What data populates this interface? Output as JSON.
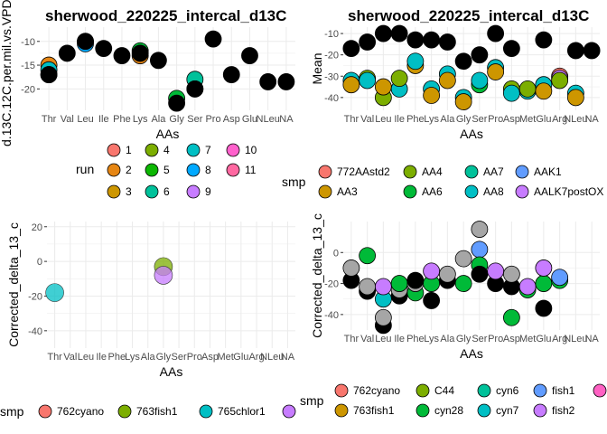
{
  "colors": {
    "panel_bg": "#ffffff",
    "grid": "#ebebeb",
    "axis_text": "#4d4d4d",
    "title_text": "#000000",
    "black_point": "#000000",
    "grey_point": "#a6a6a6"
  },
  "chart_data": [
    {
      "id": "p1",
      "type": "scatter",
      "title": "sherwood_220225_intercal_d13C",
      "xlabel": "AAs",
      "ylabel": "d.13C.12C.per.mil.vs.VPDB",
      "categories": [
        "Thr",
        "Val",
        "Leu",
        "Ile",
        "Phe",
        "Lys",
        "Ala",
        "Gly",
        "Ser",
        "Pro",
        "Asp",
        "Glu",
        "NLeu",
        "NA"
      ],
      "ylim": [
        -24.5,
        -7
      ],
      "yticks": [
        -10,
        -15,
        -20
      ],
      "grid": true,
      "points": [
        {
          "x": "Thr",
          "y": -15,
          "c": "#E68613"
        },
        {
          "x": "Thr",
          "y": -16,
          "c": "#00BFC4"
        },
        {
          "x": "Thr",
          "y": -17,
          "c": "#FF68A1"
        },
        {
          "x": "Thr",
          "y": -17,
          "c": "#000000"
        },
        {
          "x": "Val",
          "y": -12.5,
          "c": "#000000"
        },
        {
          "x": "Leu",
          "y": -10,
          "c": "#00BA38"
        },
        {
          "x": "Leu",
          "y": -10.5,
          "c": "#00A9FF"
        },
        {
          "x": "Leu",
          "y": -10,
          "c": "#000000"
        },
        {
          "x": "Ile",
          "y": -11.5,
          "c": "#000000"
        },
        {
          "x": "Phe",
          "y": -13,
          "c": "#000000"
        },
        {
          "x": "Lys",
          "y": -12,
          "c": "#00BA38"
        },
        {
          "x": "Lys",
          "y": -13,
          "c": "#E68613"
        },
        {
          "x": "Lys",
          "y": -12.5,
          "c": "#000000"
        },
        {
          "x": "Ala",
          "y": -14,
          "c": "#000000"
        },
        {
          "x": "Gly",
          "y": -22,
          "c": "#00BA38"
        },
        {
          "x": "Gly",
          "y": -23,
          "c": "#000000"
        },
        {
          "x": "Ser",
          "y": -18,
          "c": "#00C19A"
        },
        {
          "x": "Ser",
          "y": -20,
          "c": "#FF68A1"
        },
        {
          "x": "Ser",
          "y": -20,
          "c": "#000000"
        },
        {
          "x": "Pro",
          "y": -9.5,
          "c": "#000000"
        },
        {
          "x": "Asp",
          "y": -17,
          "c": "#000000"
        },
        {
          "x": "Glu",
          "y": -13,
          "c": "#000000"
        },
        {
          "x": "NLeu",
          "y": -18.5,
          "c": "#000000"
        },
        {
          "x": "NA",
          "y": -18.5,
          "c": "#000000"
        }
      ]
    },
    {
      "id": "p2",
      "type": "scatter",
      "title": "sherwood_220225_intercal_d13C",
      "xlabel": "AAs",
      "ylabel": "Mean",
      "categories": [
        "Thr",
        "Val",
        "Leu",
        "Ile",
        "Phe",
        "Lys",
        "Ala",
        "Gly",
        "Ser",
        "Pro",
        "Asp",
        "Met",
        "Glu",
        "Arg",
        "NLeu",
        "NA"
      ],
      "ylim": [
        -46,
        -7
      ],
      "yticks": [
        -10,
        -20,
        -30,
        -40
      ],
      "grid": true,
      "points": [
        {
          "x": "Thr",
          "y": -32,
          "c": "#00BFC4"
        },
        {
          "x": "Thr",
          "y": -34,
          "c": "#CD9600"
        },
        {
          "x": "Thr",
          "y": -17,
          "c": "#000000"
        },
        {
          "x": "Val",
          "y": -31,
          "c": "#7CAE00"
        },
        {
          "x": "Val",
          "y": -32,
          "c": "#00BFC4"
        },
        {
          "x": "Val",
          "y": -14,
          "c": "#000000"
        },
        {
          "x": "Leu",
          "y": -40,
          "c": "#7CAE00"
        },
        {
          "x": "Leu",
          "y": -35,
          "c": "#CD9600"
        },
        {
          "x": "Leu",
          "y": -10,
          "c": "#000000"
        },
        {
          "x": "Ile",
          "y": -36,
          "c": "#00BFC4"
        },
        {
          "x": "Ile",
          "y": -31,
          "c": "#7CAE00"
        },
        {
          "x": "Ile",
          "y": -10,
          "c": "#000000"
        },
        {
          "x": "Phe",
          "y": -25,
          "c": "#CD9600"
        },
        {
          "x": "Phe",
          "y": -23,
          "c": "#00BFC4"
        },
        {
          "x": "Phe",
          "y": -13,
          "c": "#000000"
        },
        {
          "x": "Lys",
          "y": -36,
          "c": "#00BFC4"
        },
        {
          "x": "Lys",
          "y": -39,
          "c": "#CD9600"
        },
        {
          "x": "Lys",
          "y": -13,
          "c": "#000000"
        },
        {
          "x": "Ala",
          "y": -29,
          "c": "#00BFC4"
        },
        {
          "x": "Ala",
          "y": -32,
          "c": "#CD9600"
        },
        {
          "x": "Ala",
          "y": -14,
          "c": "#000000"
        },
        {
          "x": "Gly",
          "y": -40,
          "c": "#00BFC4"
        },
        {
          "x": "Gly",
          "y": -42,
          "c": "#CD9600"
        },
        {
          "x": "Gly",
          "y": -23,
          "c": "#000000"
        },
        {
          "x": "Ser",
          "y": -34,
          "c": "#00BA38"
        },
        {
          "x": "Ser",
          "y": -32,
          "c": "#00BFC4"
        },
        {
          "x": "Ser",
          "y": -20,
          "c": "#000000"
        },
        {
          "x": "Pro",
          "y": -26,
          "c": "#00BFC4"
        },
        {
          "x": "Pro",
          "y": -28,
          "c": "#CD9600"
        },
        {
          "x": "Pro",
          "y": -10,
          "c": "#000000"
        },
        {
          "x": "Asp",
          "y": -36,
          "c": "#7CAE00"
        },
        {
          "x": "Asp",
          "y": -38,
          "c": "#00BFC4"
        },
        {
          "x": "Asp",
          "y": -17,
          "c": "#000000"
        },
        {
          "x": "Met",
          "y": -37,
          "c": "#00BFC4"
        },
        {
          "x": "Met",
          "y": -36,
          "c": "#7CAE00"
        },
        {
          "x": "Glu",
          "y": -34,
          "c": "#00BFC4"
        },
        {
          "x": "Glu",
          "y": -37,
          "c": "#CD9600"
        },
        {
          "x": "Glu",
          "y": -13,
          "c": "#000000"
        },
        {
          "x": "Arg",
          "y": -30,
          "c": "#F8766D"
        },
        {
          "x": "Arg",
          "y": -31,
          "c": "#C77CFF"
        },
        {
          "x": "Arg",
          "y": -32,
          "c": "#7CAE00"
        },
        {
          "x": "NLeu",
          "y": -38,
          "c": "#00BFC4"
        },
        {
          "x": "NLeu",
          "y": -40,
          "c": "#CD9600"
        },
        {
          "x": "NLeu",
          "y": -18,
          "c": "#000000"
        },
        {
          "x": "NA",
          "y": -18,
          "c": "#000000"
        }
      ]
    },
    {
      "id": "p3",
      "type": "scatter",
      "title": "",
      "xlabel": "AAs",
      "ylabel": "Corrected_delta_13_c",
      "categories": [
        "Thr",
        "Val",
        "Leu",
        "Ile",
        "Phe",
        "Lys",
        "Ala",
        "Gly",
        "Ser",
        "Pro",
        "Asp",
        "Met",
        "Glu",
        "Arg",
        "NLeu",
        "NA"
      ],
      "ylim": [
        -50,
        23
      ],
      "yticks": [
        20,
        0,
        -20,
        -40
      ],
      "grid": true,
      "points": [
        {
          "x": "Thr",
          "y": -18,
          "c": "#00BFC4"
        },
        {
          "x": "Gly",
          "y": -3,
          "c": "#7CAE00"
        },
        {
          "x": "Gly",
          "y": -8,
          "c": "#C77CFF"
        }
      ]
    },
    {
      "id": "p4",
      "type": "scatter",
      "title": "",
      "xlabel": "AAs",
      "ylabel": "Corrected_delta_13_c",
      "categories": [
        "Thr",
        "Val",
        "Leu",
        "Ile",
        "Phe",
        "Lys",
        "Ala",
        "Gly",
        "Ser",
        "Pro",
        "Asp",
        "Met",
        "Glu",
        "Arg",
        "NLeu",
        "NA"
      ],
      "ylim": [
        -50,
        20
      ],
      "yticks": [
        0,
        -20,
        -40
      ],
      "grid": true,
      "points": [
        {
          "x": "Thr",
          "y": -18,
          "c": "#000000"
        },
        {
          "x": "Thr",
          "y": -10,
          "c": "#a6a6a6"
        },
        {
          "x": "Val",
          "y": -2,
          "c": "#00BA38"
        },
        {
          "x": "Val",
          "y": -25,
          "c": "#000000"
        },
        {
          "x": "Val",
          "y": -22,
          "c": "#a6a6a6"
        },
        {
          "x": "Leu",
          "y": -47,
          "c": "#000000"
        },
        {
          "x": "Leu",
          "y": -42,
          "c": "#a6a6a6"
        },
        {
          "x": "Leu",
          "y": -30,
          "c": "#00BFC4"
        },
        {
          "x": "Leu",
          "y": -22,
          "c": "#C77CFF"
        },
        {
          "x": "Ile",
          "y": -28,
          "c": "#000000"
        },
        {
          "x": "Ile",
          "y": -24,
          "c": "#a6a6a6"
        },
        {
          "x": "Ile",
          "y": -20,
          "c": "#00BA38"
        },
        {
          "x": "Phe",
          "y": -26,
          "c": "#00BA38"
        },
        {
          "x": "Phe",
          "y": -20,
          "c": "#a6a6a6"
        },
        {
          "x": "Phe",
          "y": -18,
          "c": "#000000"
        },
        {
          "x": "Lys",
          "y": -31,
          "c": "#000000"
        },
        {
          "x": "Lys",
          "y": -20,
          "c": "#00BA38"
        },
        {
          "x": "Lys",
          "y": -12,
          "c": "#C77CFF"
        },
        {
          "x": "Ala",
          "y": -18,
          "c": "#000000"
        },
        {
          "x": "Ala",
          "y": -14,
          "c": "#a6a6a6"
        },
        {
          "x": "Gly",
          "y": -20,
          "c": "#00BA38"
        },
        {
          "x": "Gly",
          "y": -4,
          "c": "#a6a6a6"
        },
        {
          "x": "Ser",
          "y": 15,
          "c": "#a6a6a6"
        },
        {
          "x": "Ser",
          "y": 2,
          "c": "#619CFF"
        },
        {
          "x": "Ser",
          "y": -8,
          "c": "#00BA38"
        },
        {
          "x": "Ser",
          "y": -14,
          "c": "#000000"
        },
        {
          "x": "Pro",
          "y": -20,
          "c": "#000000"
        },
        {
          "x": "Pro",
          "y": -12,
          "c": "#C77CFF"
        },
        {
          "x": "Asp",
          "y": -42,
          "c": "#00BA38"
        },
        {
          "x": "Asp",
          "y": -22,
          "c": "#000000"
        },
        {
          "x": "Asp",
          "y": -14,
          "c": "#a6a6a6"
        },
        {
          "x": "Met",
          "y": -24,
          "c": "#00BA38"
        },
        {
          "x": "Met",
          "y": -22,
          "c": "#C77CFF"
        },
        {
          "x": "Glu",
          "y": -36,
          "c": "#000000"
        },
        {
          "x": "Glu",
          "y": -20,
          "c": "#00BA38"
        },
        {
          "x": "Glu",
          "y": -10,
          "c": "#C77CFF"
        },
        {
          "x": "Arg",
          "y": -18,
          "c": "#00BA38"
        },
        {
          "x": "Arg",
          "y": -16,
          "c": "#619CFF"
        }
      ]
    }
  ],
  "legends": {
    "run": {
      "title": "run",
      "items": [
        {
          "label": "1",
          "color": "#F8766D"
        },
        {
          "label": "2",
          "color": "#E68613"
        },
        {
          "label": "3",
          "color": "#CD9600"
        },
        {
          "label": "4",
          "color": "#7CAE00"
        },
        {
          "label": "5",
          "color": "#0CB702"
        },
        {
          "label": "6",
          "color": "#00C19A"
        },
        {
          "label": "7",
          "color": "#00BFC4"
        },
        {
          "label": "8",
          "color": "#00A9FF"
        },
        {
          "label": "9",
          "color": "#C77CFF"
        },
        {
          "label": "10",
          "color": "#FF61CC"
        },
        {
          "label": "11",
          "color": "#FF68A1"
        }
      ]
    },
    "smp_top": {
      "title": "smp",
      "items": [
        {
          "label": "772AAstd2",
          "color": "#F8766D"
        },
        {
          "label": "AA3",
          "color": "#CD9600"
        },
        {
          "label": "AA4",
          "color": "#7CAE00"
        },
        {
          "label": "AA6",
          "color": "#00BA38"
        },
        {
          "label": "AA7",
          "color": "#00C19A"
        },
        {
          "label": "AA8",
          "color": "#00BFC4"
        },
        {
          "label": "AAK1",
          "color": "#619CFF"
        },
        {
          "label": "AALK7postOX",
          "color": "#C77CFF"
        }
      ]
    },
    "smp_bottom_left": {
      "title": "smp",
      "items": [
        {
          "label": "762cyano",
          "color": "#F8766D"
        },
        {
          "label": "763fish1",
          "color": "#7CAE00"
        },
        {
          "label": "765chlor1",
          "color": "#00BFC4"
        },
        {
          "label": "",
          "color": "#C77CFF"
        }
      ]
    },
    "smp_bottom_right": {
      "title": "smp",
      "items": [
        {
          "label": "762cyano",
          "color": "#F8766D"
        },
        {
          "label": "763fish1",
          "color": "#CD9600"
        },
        {
          "label": "C44",
          "color": "#7CAE00"
        },
        {
          "label": "cyn28",
          "color": "#00BA38"
        },
        {
          "label": "cyn6",
          "color": "#00C19A"
        },
        {
          "label": "cyn7",
          "color": "#00BFC4"
        },
        {
          "label": "fish1",
          "color": "#619CFF"
        },
        {
          "label": "fish2",
          "color": "#C77CFF"
        },
        {
          "label": "",
          "color": "#FF61C3"
        }
      ]
    }
  }
}
